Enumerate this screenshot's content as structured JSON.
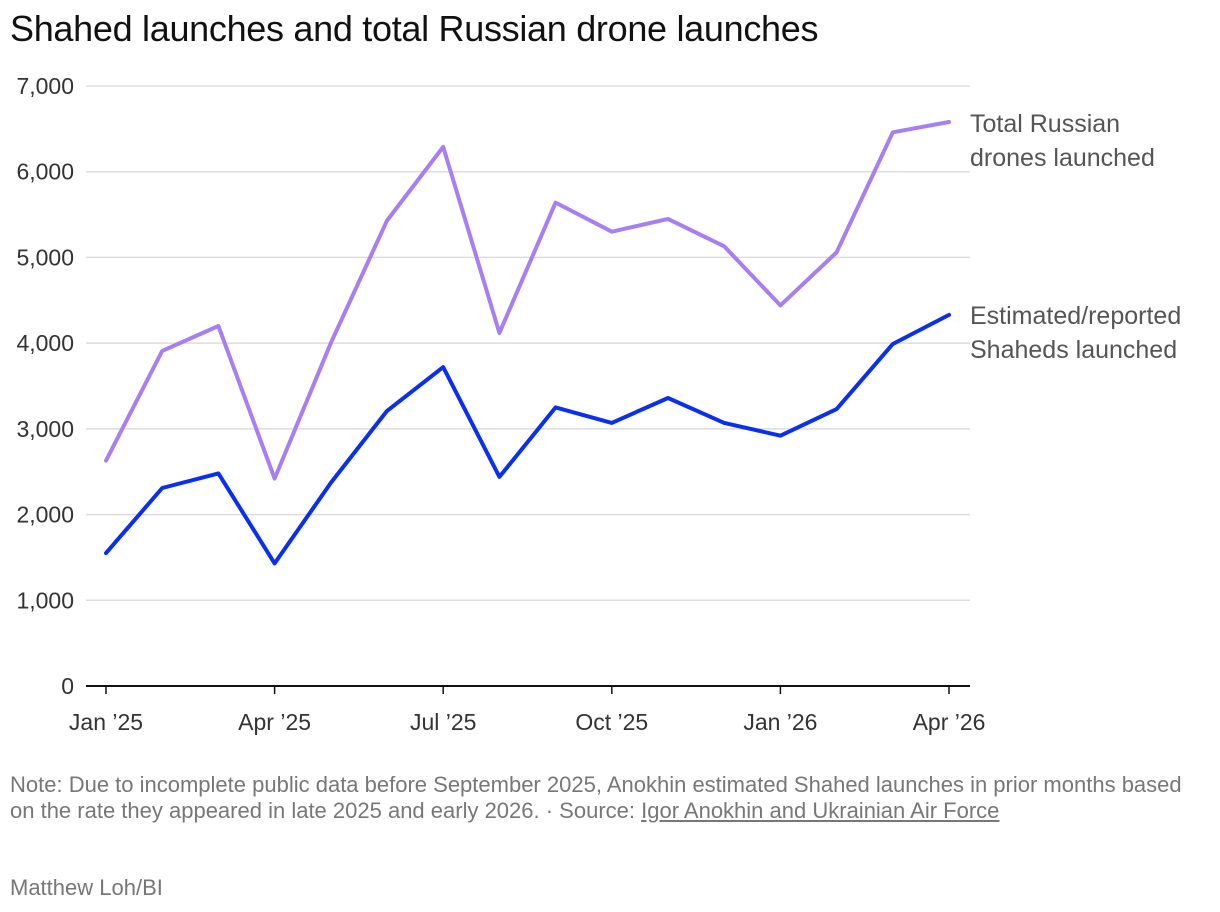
{
  "title": "Shahed launches and total Russian drone launches",
  "chart_data": {
    "type": "line",
    "title": "Shahed launches and total Russian drone launches",
    "x": [
      "2025-01",
      "2025-02",
      "2025-03",
      "2025-04",
      "2025-05",
      "2025-06",
      "2025-07",
      "2025-08",
      "2025-09",
      "2025-10",
      "2025-11",
      "2025-12",
      "2026-01",
      "2026-02",
      "2026-03",
      "2026-04"
    ],
    "x_tick_labels": [
      "Jan ’25",
      "Apr ’25",
      "Jul ’25",
      "Oct ’25",
      "Jan ’26",
      "Apr ’26"
    ],
    "x_tick_index": [
      0,
      3,
      6,
      9,
      12,
      15
    ],
    "y_ticks": [
      0,
      1000,
      2000,
      3000,
      4000,
      5000,
      6000,
      7000
    ],
    "y_tick_labels": [
      "0",
      "1,000",
      "2,000",
      "3,000",
      "4,000",
      "5,000",
      "6,000",
      "7,000"
    ],
    "ylim": [
      0,
      7000
    ],
    "grid": true,
    "series": [
      {
        "name": "Total Russian drones launched",
        "label_lines": [
          "Total Russian",
          "drones launched"
        ],
        "color": "#a77ff5",
        "values": [
          2630,
          3910,
          4200,
          2420,
          4000,
          5430,
          6290,
          4120,
          5640,
          5300,
          5450,
          5130,
          4440,
          5060,
          6460,
          6580
        ]
      },
      {
        "name": "Estimated/reported Shaheds launched",
        "label_lines": [
          "Estimated/reported",
          "Shaheds launched"
        ],
        "color": "#0a2ff0",
        "values": [
          1550,
          2310,
          2480,
          1430,
          2370,
          3210,
          3720,
          2440,
          3250,
          3070,
          3360,
          3070,
          2920,
          3230,
          3990,
          4330
        ]
      }
    ]
  },
  "note": {
    "text": "Note: Due to incomplete public data before September 2025, Anokhin estimated Shahed launches in prior months based on the rate they appeared in late 2025 and early 2026. · Source: ",
    "source_link": "Igor Anokhin and Ukrainian Air Force"
  },
  "credit": "Matthew Loh/BI"
}
